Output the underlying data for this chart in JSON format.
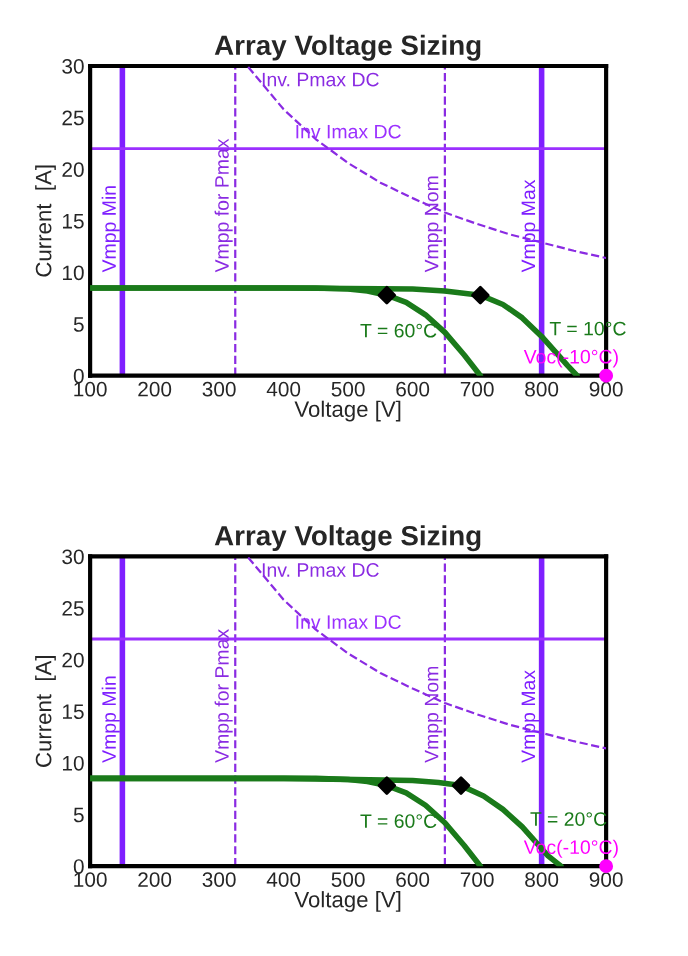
{
  "chart_data": [
    {
      "type": "line",
      "title": "Array Voltage Sizing",
      "xlabel": "Voltage [V]",
      "ylabel": "Current  [A]",
      "xlim": [
        100,
        900
      ],
      "ylim": [
        0,
        30
      ],
      "xticks": [
        100,
        200,
        300,
        400,
        500,
        600,
        700,
        800,
        900
      ],
      "yticks": [
        0,
        5,
        10,
        15,
        20,
        25,
        30
      ],
      "grid": false,
      "legend": false,
      "series": [
        {
          "name": "Inv. Pmax DC",
          "color": "#8a2be2",
          "line_style": "dashed",
          "x": [
            345,
            400,
            450,
            500,
            550,
            600,
            650,
            700,
            750,
            800,
            850,
            900
          ],
          "values": [
            29.9,
            25.8,
            22.9,
            20.6,
            18.7,
            17.2,
            15.8,
            14.7,
            13.7,
            12.9,
            12.1,
            11.4
          ]
        },
        {
          "name": "T = 60°C",
          "color": "#1a7a1a",
          "line_style": "solid",
          "x": [
            100,
            300,
            450,
            500,
            530,
            560,
            590,
            620,
            650,
            680,
            700,
            705
          ],
          "values": [
            8.5,
            8.5,
            8.5,
            8.4,
            8.2,
            7.8,
            7.1,
            5.9,
            4.2,
            2.0,
            0.4,
            0
          ]
        },
        {
          "name": "T = 10°C",
          "color": "#1a7a1a",
          "line_style": "solid",
          "x": [
            100,
            400,
            600,
            650,
            705,
            740,
            770,
            800,
            820,
            840,
            855
          ],
          "values": [
            8.5,
            8.5,
            8.4,
            8.2,
            7.8,
            6.9,
            5.6,
            3.8,
            2.4,
            1.0,
            0
          ]
        },
        {
          "type": "scatter",
          "color": "#000000",
          "marker": "diamond",
          "x": [
            560,
            705
          ],
          "values": [
            7.8,
            7.8
          ]
        },
        {
          "type": "scatter",
          "name": "Voc(-10°C)",
          "color": "#ff00ff",
          "marker": "circle",
          "x": [
            900
          ],
          "values": [
            0
          ]
        }
      ],
      "ref_lines": [
        {
          "axis": "x",
          "value": 150,
          "label": "Vmpp Min",
          "color": "#7f1fff",
          "line_style": "solid"
        },
        {
          "axis": "x",
          "value": 325,
          "label": "Vmpp for Pmax",
          "color": "#8a2be2",
          "line_style": "dashed"
        },
        {
          "axis": "x",
          "value": 650,
          "label": "Vmpp Nom",
          "color": "#8a2be2",
          "line_style": "dashed"
        },
        {
          "axis": "x",
          "value": 800,
          "label": "Vmpp Max",
          "color": "#7f1fff",
          "line_style": "solid"
        },
        {
          "axis": "y",
          "value": 22,
          "label": "Inv Imax DC",
          "color": "#9b30ff",
          "line_style": "solid"
        }
      ]
    },
    {
      "type": "line",
      "title": "Array Voltage Sizing",
      "xlabel": "Voltage [V]",
      "ylabel": "Current  [A]",
      "xlim": [
        100,
        900
      ],
      "ylim": [
        0,
        30
      ],
      "xticks": [
        100,
        200,
        300,
        400,
        500,
        600,
        700,
        800,
        900
      ],
      "yticks": [
        0,
        5,
        10,
        15,
        20,
        25,
        30
      ],
      "grid": false,
      "legend": false,
      "series": [
        {
          "name": "Inv. Pmax DC",
          "color": "#8a2be2",
          "line_style": "dashed",
          "x": [
            345,
            400,
            450,
            500,
            550,
            600,
            650,
            700,
            750,
            800,
            850,
            900
          ],
          "values": [
            29.9,
            25.8,
            22.9,
            20.6,
            18.7,
            17.2,
            15.8,
            14.7,
            13.7,
            12.9,
            12.1,
            11.4
          ]
        },
        {
          "name": "T = 60°C",
          "color": "#1a7a1a",
          "line_style": "solid",
          "x": [
            100,
            300,
            450,
            500,
            530,
            560,
            590,
            620,
            650,
            680,
            700,
            705
          ],
          "values": [
            8.5,
            8.5,
            8.5,
            8.4,
            8.2,
            7.8,
            7.1,
            5.9,
            4.2,
            2.0,
            0.4,
            0
          ]
        },
        {
          "name": "T = 20°C",
          "color": "#1a7a1a",
          "line_style": "solid",
          "x": [
            100,
            400,
            600,
            640,
            675,
            710,
            740,
            770,
            790,
            810,
            830
          ],
          "values": [
            8.5,
            8.5,
            8.3,
            8.1,
            7.8,
            6.8,
            5.5,
            3.8,
            2.4,
            1.0,
            0
          ]
        },
        {
          "type": "scatter",
          "color": "#000000",
          "marker": "diamond",
          "x": [
            560,
            675
          ],
          "values": [
            7.8,
            7.8
          ]
        },
        {
          "type": "scatter",
          "name": "Voc(-10°C)",
          "color": "#ff00ff",
          "marker": "circle",
          "x": [
            900
          ],
          "values": [
            0
          ]
        }
      ],
      "ref_lines": [
        {
          "axis": "x",
          "value": 150,
          "label": "Vmpp Min",
          "color": "#7f1fff",
          "line_style": "solid"
        },
        {
          "axis": "x",
          "value": 325,
          "label": "Vmpp for Pmax",
          "color": "#8a2be2",
          "line_style": "dashed"
        },
        {
          "axis": "x",
          "value": 650,
          "label": "Vmpp Nom",
          "color": "#8a2be2",
          "line_style": "dashed"
        },
        {
          "axis": "x",
          "value": 800,
          "label": "Vmpp Max",
          "color": "#7f1fff",
          "line_style": "solid"
        },
        {
          "axis": "y",
          "value": 22,
          "label": "Inv Imax DC",
          "color": "#9b30ff",
          "line_style": "solid"
        }
      ]
    }
  ]
}
